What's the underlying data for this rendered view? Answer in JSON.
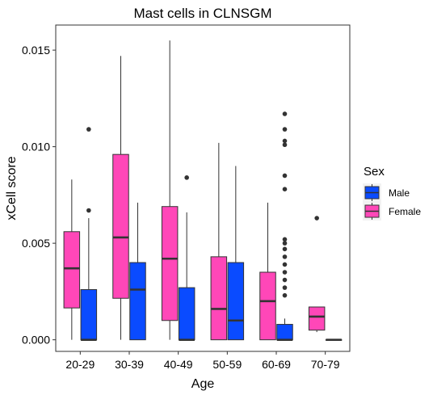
{
  "chart_data": {
    "type": "boxplot",
    "title": "Mast cells in CLNSGM",
    "xlabel": "Age",
    "ylabel": "xCell score",
    "ylim": [
      -0.0006,
      0.0163
    ],
    "yticks": [
      "0.000",
      "0.005",
      "0.010",
      "0.015"
    ],
    "ytick_values": [
      0,
      0.005,
      0.01,
      0.015
    ],
    "grid": false,
    "legend_placement": "right",
    "legend": {
      "title": "Sex",
      "items": [
        {
          "label": "Male",
          "color": "#0A4BFF"
        },
        {
          "label": "Female",
          "color": "#FF47B8"
        }
      ]
    },
    "categories": [
      "20-29",
      "30-39",
      "40-49",
      "50-59",
      "60-69",
      "70-79"
    ],
    "series": [
      {
        "name": "Female",
        "color": "#FF47B8",
        "boxes": [
          {
            "category": "20-29",
            "whisker_low": 0.0,
            "q1": 0.00165,
            "median": 0.0037,
            "q3": 0.0056,
            "whisker_high": 0.0083,
            "outliers": []
          },
          {
            "category": "30-39",
            "whisker_low": 0.0,
            "q1": 0.00215,
            "median": 0.0053,
            "q3": 0.0096,
            "whisker_high": 0.0147,
            "outliers": []
          },
          {
            "category": "40-49",
            "whisker_low": 0.0,
            "q1": 0.001,
            "median": 0.0042,
            "q3": 0.0069,
            "whisker_high": 0.0155,
            "outliers": []
          },
          {
            "category": "50-59",
            "whisker_low": 0.0,
            "q1": 0.0,
            "median": 0.0016,
            "q3": 0.0043,
            "whisker_high": 0.0102,
            "outliers": []
          },
          {
            "category": "60-69",
            "whisker_low": 0.0,
            "q1": 0.0,
            "median": 0.002,
            "q3": 0.0035,
            "whisker_high": 0.0071,
            "outliers": []
          },
          {
            "category": "70-79",
            "whisker_low": 0.0004,
            "q1": 0.0005,
            "median": 0.0012,
            "q3": 0.0017,
            "whisker_high": 0.0017,
            "outliers": [
              0.0063
            ]
          }
        ]
      },
      {
        "name": "Male",
        "color": "#0A4BFF",
        "boxes": [
          {
            "category": "20-29",
            "whisker_low": 0.0,
            "q1": 0.0,
            "median": 0.0,
            "q3": 0.0026,
            "whisker_high": 0.0063,
            "outliers": [
              0.0067,
              0.0109
            ]
          },
          {
            "category": "30-39",
            "whisker_low": 0.0,
            "q1": 0.0,
            "median": 0.0026,
            "q3": 0.004,
            "whisker_high": 0.0071,
            "outliers": []
          },
          {
            "category": "40-49",
            "whisker_low": 0.0,
            "q1": 0.0,
            "median": 0.0,
            "q3": 0.0027,
            "whisker_high": 0.0066,
            "outliers": [
              0.0084
            ]
          },
          {
            "category": "50-59",
            "whisker_low": 0.0,
            "q1": 0.0,
            "median": 0.001,
            "q3": 0.004,
            "whisker_high": 0.009,
            "outliers": []
          },
          {
            "category": "60-69",
            "whisker_low": 0.0,
            "q1": 0.0,
            "median": 0.0,
            "q3": 0.0008,
            "whisker_high": 0.0011,
            "outliers": [
              0.0023,
              0.0027,
              0.0031,
              0.0035,
              0.0039,
              0.0043,
              0.0047,
              0.005,
              0.0052,
              0.0078,
              0.0085,
              0.0101,
              0.0103,
              0.0109,
              0.0117
            ]
          },
          {
            "category": "70-79",
            "whisker_low": 0.0,
            "q1": 0.0,
            "median": 0.0,
            "q3": 0.0,
            "whisker_high": 0.0,
            "outliers": []
          }
        ]
      }
    ]
  }
}
